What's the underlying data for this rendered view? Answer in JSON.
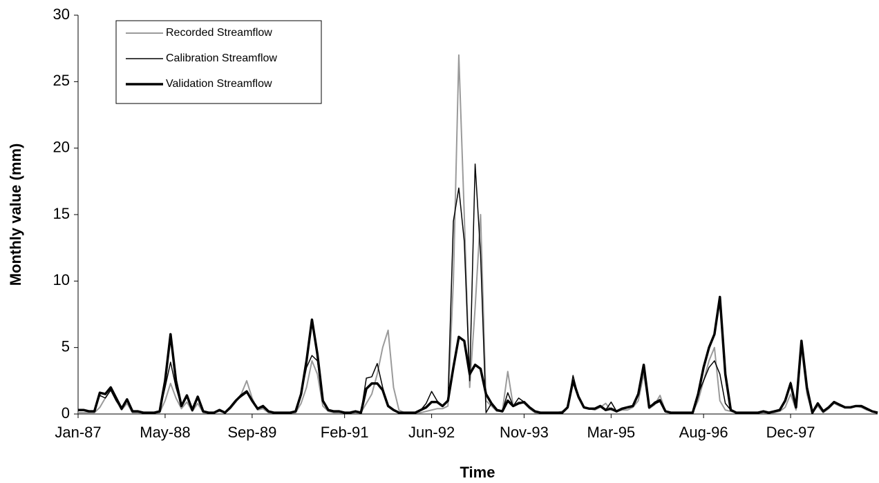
{
  "chart_data": {
    "type": "line",
    "y_label": "Monthly value (mm)",
    "x_label": "Time",
    "categories": [
      "Jan-87",
      null,
      null,
      null,
      null,
      null,
      null,
      null,
      null,
      null,
      null,
      null,
      null,
      null,
      null,
      null,
      "May-88",
      null,
      null,
      null,
      null,
      null,
      null,
      null,
      null,
      null,
      null,
      null,
      null,
      null,
      null,
      null,
      "Sep-89",
      null,
      null,
      null,
      null,
      null,
      null,
      null,
      null,
      null,
      null,
      null,
      null,
      null,
      null,
      null,
      null,
      "Feb-91",
      null,
      null,
      null,
      null,
      null,
      null,
      null,
      null,
      null,
      null,
      null,
      null,
      null,
      null,
      null,
      "Jun-92",
      null,
      null,
      null,
      null,
      null,
      null,
      null,
      null,
      null,
      null,
      null,
      null,
      null,
      null,
      null,
      null,
      "Nov-93",
      null,
      null,
      null,
      null,
      null,
      null,
      null,
      null,
      null,
      null,
      null,
      null,
      null,
      null,
      null,
      "Mar-95",
      null,
      null,
      null,
      null,
      null,
      null,
      null,
      null,
      null,
      null,
      null,
      null,
      null,
      null,
      null,
      null,
      "Aug-96",
      null,
      null,
      null,
      null,
      null,
      null,
      null,
      null,
      null,
      null,
      null,
      null,
      null,
      null,
      null,
      "Dec-97",
      null,
      null,
      null,
      null,
      null,
      null,
      null,
      null,
      null,
      null,
      null,
      null,
      null,
      null,
      null,
      null
    ],
    "series": [
      {
        "name": "Recorded Streamflow",
        "color": "#9a9a9a",
        "line_width": 2,
        "values": [
          0.1,
          0.1,
          0.1,
          0.1,
          0.5,
          1.2,
          1.8,
          1.0,
          0.3,
          0.8,
          0.1,
          0.1,
          0.1,
          0.1,
          0.1,
          0.1,
          1.0,
          2.3,
          1.2,
          0.4,
          0.9,
          0.2,
          0.8,
          0.1,
          0.1,
          0.1,
          0.2,
          0.1,
          0.4,
          0.9,
          1.5,
          2.5,
          1.2,
          0.3,
          0.4,
          0.1,
          0.1,
          0.1,
          0.1,
          0.1,
          0.1,
          0.8,
          2.0,
          4.0,
          3.0,
          0.6,
          0.2,
          0.1,
          0.1,
          0.1,
          0.1,
          0.1,
          0.1,
          0.8,
          1.5,
          3.0,
          5.0,
          6.3,
          2.0,
          0.3,
          0.1,
          0.1,
          0.1,
          0.1,
          0.2,
          0.3,
          0.4,
          0.4,
          0.6,
          10.0,
          27.0,
          15.0,
          2.0,
          8.0,
          15.0,
          1.0,
          0.6,
          0.2,
          0.2,
          3.2,
          0.6,
          0.9,
          0.8,
          0.4,
          0.1,
          0.1,
          0.1,
          0.1,
          0.1,
          0.2,
          0.5,
          2.7,
          1.2,
          0.5,
          0.4,
          0.3,
          0.5,
          0.8,
          0.3,
          0.2,
          0.3,
          0.3,
          0.5,
          1.0,
          3.0,
          0.4,
          0.7,
          1.4,
          0.2,
          0.1,
          0.1,
          0.1,
          0.1,
          0.1,
          1.0,
          2.5,
          4.0,
          5.0,
          1.0,
          0.3,
          0.2,
          0.1,
          0.1,
          0.1,
          0.1,
          0.1,
          0.1,
          0.1,
          0.1,
          0.2,
          0.5,
          1.5,
          0.3,
          5.0,
          1.5,
          0.1,
          0.6,
          0.1,
          0.4,
          0.8,
          0.6,
          0.5,
          0.5,
          0.6,
          0.5,
          0.3,
          0.2,
          0.1
        ]
      },
      {
        "name": "Calibration Streamflow",
        "color": "#000000",
        "line_width": 1.5,
        "values": [
          0.3,
          0.3,
          0.2,
          0.2,
          1.4,
          1.2,
          1.8,
          1.0,
          0.4,
          1.0,
          0.2,
          0.2,
          0.1,
          0.1,
          0.1,
          0.2,
          2.0,
          3.9,
          2.0,
          0.6,
          1.3,
          0.3,
          1.2,
          0.2,
          0.1,
          0.1,
          0.3,
          0.1,
          0.5,
          1.0,
          1.3,
          1.6,
          1.0,
          0.4,
          0.5,
          0.2,
          0.1,
          0.1,
          0.1,
          0.1,
          0.2,
          1.5,
          3.5,
          4.4,
          4.0,
          1.0,
          0.3,
          0.2,
          0.2,
          0.1,
          0.1,
          0.2,
          0.1,
          2.7,
          2.8,
          3.8,
          2.0,
          0.6,
          0.3,
          0.1,
          0.1,
          0.1,
          0.1,
          0.3,
          0.8,
          1.7,
          1.0,
          0.6,
          1.0,
          14.5,
          17.0,
          13.0,
          2.5,
          18.8,
          12.0,
          0.1,
          0.8,
          0.3,
          0.2,
          1.6,
          0.6,
          1.2,
          0.9,
          0.5,
          0.2,
          0.1,
          0.1,
          0.1,
          0.1,
          0.1,
          0.5,
          2.9,
          1.3,
          0.5,
          0.4,
          0.4,
          0.6,
          0.3,
          0.9,
          0.2,
          0.4,
          0.5,
          0.6,
          1.5,
          3.4,
          0.5,
          0.9,
          1.1,
          0.2,
          0.1,
          0.1,
          0.1,
          0.1,
          0.1,
          1.5,
          2.5,
          3.5,
          4.0,
          3.0,
          0.8,
          0.3,
          0.1,
          0.1,
          0.1,
          0.1,
          0.1,
          0.2,
          0.1,
          0.2,
          0.3,
          1.0,
          2.4,
          0.5,
          5.3,
          2.0,
          0.1,
          0.8,
          0.2,
          0.5,
          0.9,
          0.7,
          0.5,
          0.5,
          0.6,
          0.6,
          0.4,
          0.2,
          0.1
        ]
      },
      {
        "name": "Validation Streamflow",
        "color": "#000000",
        "line_width": 3.5,
        "values": [
          0.3,
          0.3,
          0.2,
          0.2,
          1.6,
          1.5,
          2.0,
          1.2,
          0.4,
          1.1,
          0.2,
          0.2,
          0.1,
          0.1,
          0.1,
          0.2,
          2.5,
          6.0,
          2.5,
          0.6,
          1.4,
          0.3,
          1.3,
          0.2,
          0.1,
          0.1,
          0.3,
          0.1,
          0.5,
          1.0,
          1.4,
          1.7,
          1.0,
          0.4,
          0.6,
          0.2,
          0.1,
          0.1,
          0.1,
          0.1,
          0.2,
          1.5,
          4.0,
          7.1,
          4.5,
          1.0,
          0.3,
          0.2,
          0.2,
          0.1,
          0.1,
          0.2,
          0.1,
          1.9,
          2.3,
          2.3,
          1.8,
          0.6,
          0.3,
          0.1,
          0.1,
          0.1,
          0.1,
          0.3,
          0.5,
          0.9,
          0.9,
          0.6,
          1.0,
          3.5,
          5.8,
          5.5,
          3.0,
          3.7,
          3.4,
          1.5,
          0.8,
          0.3,
          0.2,
          1.0,
          0.6,
          0.8,
          0.9,
          0.5,
          0.2,
          0.1,
          0.1,
          0.1,
          0.1,
          0.1,
          0.5,
          2.5,
          1.3,
          0.5,
          0.4,
          0.4,
          0.6,
          0.3,
          0.4,
          0.2,
          0.4,
          0.5,
          0.6,
          1.5,
          3.7,
          0.5,
          0.8,
          1.0,
          0.2,
          0.1,
          0.1,
          0.1,
          0.1,
          0.1,
          1.5,
          3.5,
          5.0,
          6.0,
          8.8,
          3.0,
          0.3,
          0.1,
          0.1,
          0.1,
          0.1,
          0.1,
          0.2,
          0.1,
          0.2,
          0.3,
          1.0,
          2.3,
          0.5,
          5.5,
          2.0,
          0.1,
          0.8,
          0.2,
          0.5,
          0.9,
          0.7,
          0.5,
          0.5,
          0.6,
          0.6,
          0.4,
          0.2,
          0.1
        ]
      }
    ],
    "ylim": [
      0,
      30
    ],
    "yticks": [
      0,
      5,
      10,
      15,
      20,
      25,
      30
    ],
    "grid": false,
    "legend": "top-left"
  }
}
